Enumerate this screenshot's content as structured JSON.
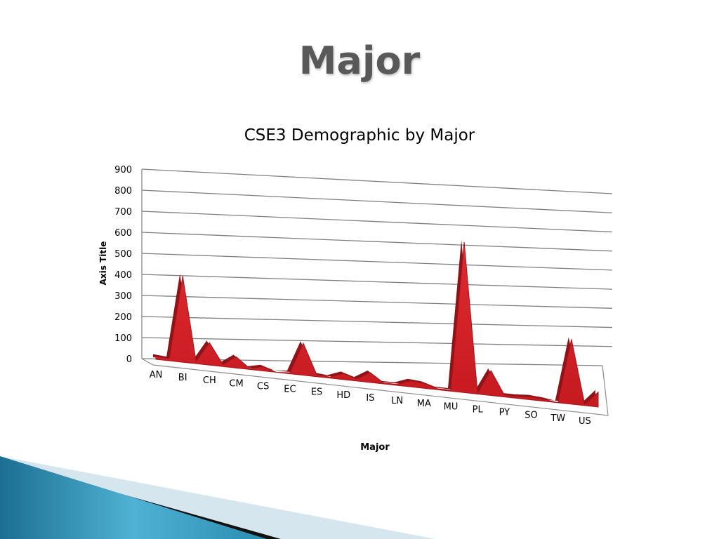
{
  "slide": {
    "title": "Major"
  },
  "chart_data": {
    "type": "area",
    "title": "CSE3 Demographic by Major",
    "xlabel": "Major",
    "ylabel": "Axis Title",
    "ylim": [
      0,
      900
    ],
    "yticks": [
      0,
      100,
      200,
      300,
      400,
      500,
      600,
      700,
      800,
      900
    ],
    "categories": [
      "AN",
      "",
      "BI",
      "",
      "CH",
      "",
      "CM",
      "",
      "CS",
      "",
      "EC",
      "",
      "ES",
      "",
      "HD",
      "",
      "IS",
      "",
      "LN",
      "",
      "MA",
      "",
      "MU",
      "",
      "PL",
      "",
      "PY",
      "",
      "SO",
      "",
      "TW",
      "",
      "US",
      ""
    ],
    "values": [
      15,
      10,
      420,
      10,
      110,
      10,
      55,
      5,
      20,
      0,
      5,
      160,
      10,
      5,
      30,
      10,
      50,
      5,
      5,
      30,
      25,
      5,
      5,
      780,
      5,
      130,
      10,
      10,
      15,
      10,
      0,
      345,
      5,
      80
    ],
    "grid": true,
    "legend": "none",
    "color": "#d42027"
  },
  "colors": {
    "deco_teal": "#2a8db0",
    "deco_light": "#d6e6ef",
    "deco_dark": "#111111"
  }
}
